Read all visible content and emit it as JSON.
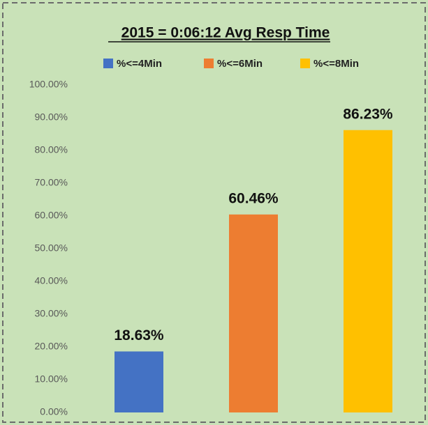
{
  "chart_data": {
    "type": "bar",
    "title": "2015 = 0:06:12 Avg Resp Time",
    "series": [
      {
        "name": "%<=4Min",
        "color": "#4472c4",
        "values": [
          18.63
        ],
        "value_labels": [
          "18.63%"
        ]
      },
      {
        "name": "%<=6Min",
        "color": "#ed7d31",
        "values": [
          60.46
        ],
        "value_labels": [
          "60.46%"
        ]
      },
      {
        "name": "%<=8Min",
        "color": "#ffc000",
        "values": [
          86.23
        ],
        "value_labels": [
          "86.23%"
        ]
      }
    ],
    "ylim": [
      0,
      100
    ],
    "yticks": [
      {
        "value": 0,
        "label": "0.00%"
      },
      {
        "value": 10,
        "label": "10.00%"
      },
      {
        "value": 20,
        "label": "20.00%"
      },
      {
        "value": 30,
        "label": "30.00%"
      },
      {
        "value": 40,
        "label": "40.00%"
      },
      {
        "value": 50,
        "label": "50.00%"
      },
      {
        "value": 60,
        "label": "60.00%"
      },
      {
        "value": 70,
        "label": "70.00%"
      },
      {
        "value": 80,
        "label": "80.00%"
      },
      {
        "value": 90,
        "label": "90.00%"
      },
      {
        "value": 100,
        "label": "100.00%"
      }
    ],
    "grid": false,
    "legend": "top"
  }
}
